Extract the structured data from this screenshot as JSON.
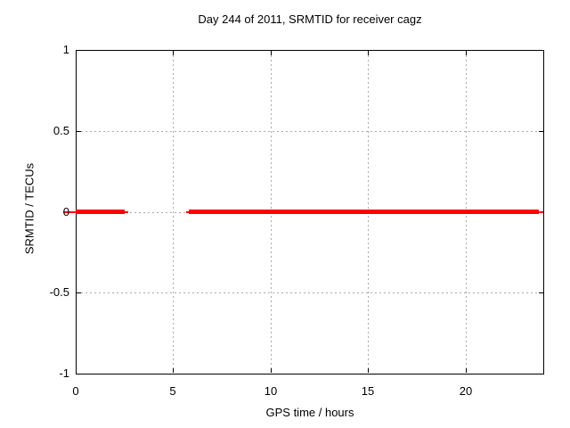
{
  "chart_data": {
    "type": "line",
    "title": "Day 244 of 2011, SRMTID for receiver cagz",
    "xlabel": "GPS time / hours",
    "ylabel": "SRMTID / TECUs",
    "xlim": [
      0,
      24
    ],
    "ylim": [
      -1,
      1
    ],
    "grid": true,
    "legend_position": "none",
    "x_ticks": [
      {
        "value": 0,
        "label": "0"
      },
      {
        "value": 5,
        "label": "5"
      },
      {
        "value": 10,
        "label": "10"
      },
      {
        "value": 15,
        "label": "15"
      },
      {
        "value": 20,
        "label": "20"
      }
    ],
    "y_ticks": [
      {
        "value": 1,
        "label": "1"
      },
      {
        "value": 0.5,
        "label": "0.5"
      },
      {
        "value": 0,
        "label": "0"
      },
      {
        "value": -0.5,
        "label": "-0.5"
      },
      {
        "value": -1,
        "label": "-1"
      }
    ],
    "series": [
      {
        "name": "SRMTID",
        "color": "#ff0000",
        "y_value": 0,
        "segments": [
          {
            "x_start": 0.0,
            "x_end": 2.51,
            "style": "thick"
          },
          {
            "x_start": 2.51,
            "x_end": 2.7,
            "style": "thin"
          },
          {
            "x_start": 5.67,
            "x_end": 5.81,
            "style": "thin"
          },
          {
            "x_start": 5.81,
            "x_end": 23.77,
            "style": "thick"
          },
          {
            "x_start": 23.77,
            "x_end": 24.0,
            "style": "thin"
          }
        ],
        "offaxis_dash": {
          "x_start": -0.64,
          "x_end": 0.0,
          "y_value": 0,
          "style": "thin"
        }
      }
    ],
    "colors": {
      "line": "#ff0000",
      "grid": "#aaaaaa",
      "axis": "#000000",
      "text": "#000000",
      "background": "#ffffff"
    }
  }
}
